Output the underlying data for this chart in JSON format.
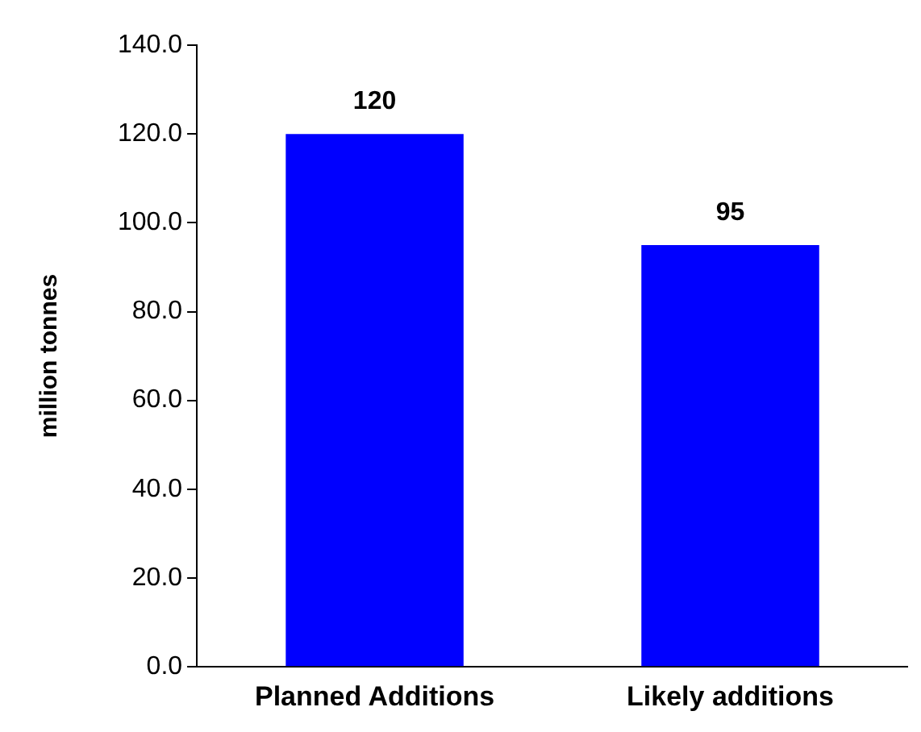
{
  "chart_data": {
    "type": "bar",
    "ylabel": "million tonnes",
    "categories": [
      "Planned Additions",
      "Likely additions"
    ],
    "values": [
      120,
      95
    ],
    "color": "#0000ff",
    "ylim": [
      0,
      140
    ],
    "yticks": [
      {
        "value": 0,
        "label": "0.0"
      },
      {
        "value": 20,
        "label": "20.0"
      },
      {
        "value": 40,
        "label": "40.0"
      },
      {
        "value": 60,
        "label": "60.0"
      },
      {
        "value": 80,
        "label": "80.0"
      },
      {
        "value": 100,
        "label": "100.0"
      },
      {
        "value": 120,
        "label": "120.0"
      },
      {
        "value": 140,
        "label": "140.0"
      }
    ],
    "data_labels": true,
    "grid": false,
    "legend": false
  }
}
